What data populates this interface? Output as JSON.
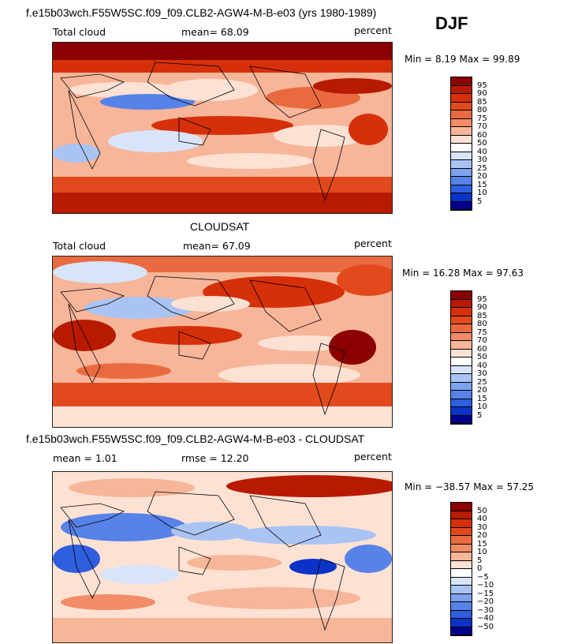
{
  "season_label": "DJF",
  "panels": [
    {
      "title": "f.e15b03wch.F55W5SC.f09_f09.CLB2-AGW4-M-B-e03 (yrs 1980-1989)",
      "left_label": "Total cloud",
      "mid_label": "mean=  68.09",
      "right_label": "percent",
      "minmax": "Min =   8.19 Max =  99.89",
      "colorbar_labels": [
        "95",
        "90",
        "85",
        "80",
        "75",
        "70",
        "60",
        "50",
        "40",
        "30",
        "25",
        "20",
        "15",
        "10",
        "5"
      ]
    },
    {
      "title": "CLOUDSAT",
      "left_label": "Total cloud",
      "mid_label": "mean=  67.09",
      "right_label": "percent",
      "minmax": "Min =  16.28 Max =  97.63",
      "colorbar_labels": [
        "95",
        "90",
        "85",
        "80",
        "75",
        "70",
        "60",
        "50",
        "40",
        "30",
        "25",
        "20",
        "15",
        "10",
        "5"
      ]
    },
    {
      "title": "f.e15b03wch.F55W5SC.f09_f09.CLB2-AGW4-M-B-e03 - CLOUDSAT",
      "left_label": "mean =    1.01",
      "mid_label": "rmse =   12.20",
      "right_label": "percent",
      "minmax": "Min = −38.57 Max =  57.25",
      "colorbar_labels": [
        "50",
        "40",
        "30",
        "20",
        "15",
        "10",
        "5",
        "0",
        "−5",
        "−10",
        "−15",
        "−20",
        "−30",
        "−40",
        "−50"
      ]
    }
  ],
  "colors": {
    "scale": [
      "#8b0000",
      "#b81a00",
      "#d6300a",
      "#e24a1e",
      "#ea6a40",
      "#f28c66",
      "#f7b599",
      "#fde2d4",
      "#ffffff",
      "#d7e4fa",
      "#a9c3f3",
      "#7fa2ee",
      "#5782e8",
      "#2f5ede",
      "#0b33c8",
      "#00008b"
    ]
  },
  "chart_data": {
    "type": "heatmap",
    "subtype": "global lat-lon contour maps",
    "season": "DJF",
    "maps": [
      {
        "name": "model",
        "field": "Total cloud",
        "units": "percent",
        "mean": 68.09,
        "min": 8.19,
        "max": 99.89,
        "levels": [
          5,
          10,
          15,
          20,
          25,
          30,
          40,
          50,
          60,
          70,
          75,
          80,
          85,
          90,
          95
        ]
      },
      {
        "name": "CLOUDSAT",
        "field": "Total cloud",
        "units": "percent",
        "mean": 67.09,
        "min": 16.28,
        "max": 97.63,
        "levels": [
          5,
          10,
          15,
          20,
          25,
          30,
          40,
          50,
          60,
          70,
          75,
          80,
          85,
          90,
          95
        ]
      },
      {
        "name": "model - CLOUDSAT",
        "units": "percent",
        "mean": 1.01,
        "rmse": 12.2,
        "min": -38.57,
        "max": 57.25,
        "levels": [
          -50,
          -40,
          -30,
          -20,
          -15,
          -10,
          -5,
          0,
          5,
          10,
          15,
          20,
          30,
          40,
          50
        ]
      }
    ]
  }
}
